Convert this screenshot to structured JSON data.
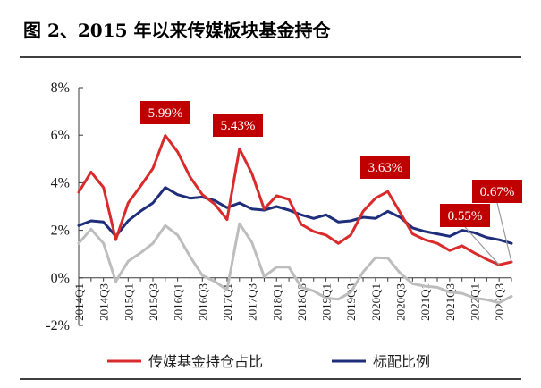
{
  "figure_title": "图 2、2015 年以来传媒板块基金持仓",
  "chart_data": {
    "type": "line",
    "title": "",
    "xlabel": "",
    "ylabel": "",
    "ylim": [
      -2,
      8
    ],
    "yticks": [
      -2,
      0,
      2,
      4,
      6,
      8
    ],
    "ytick_labels": [
      "-2%",
      "0%",
      "2%",
      "4%",
      "6%",
      "8%"
    ],
    "ytick_suffix": "%",
    "grid": false,
    "legend_position": "bottom",
    "x": [
      "2014Q1",
      "2014Q2",
      "2014Q3",
      "2014Q4",
      "2015Q1",
      "2015Q2",
      "2015Q3",
      "2015Q4",
      "2016Q1",
      "2016Q2",
      "2016Q3",
      "2016Q4",
      "2017Q1",
      "2017Q2",
      "2017Q3",
      "2017Q4",
      "2018Q1",
      "2018Q2",
      "2018Q3",
      "2018Q4",
      "2019Q1",
      "2019Q2",
      "2019Q3",
      "2019Q4",
      "2020Q1",
      "2020Q2",
      "2020Q3",
      "2020Q4",
      "2021Q1",
      "2021Q2",
      "2021Q3",
      "2021Q4",
      "2022Q1",
      "2022Q2",
      "2022Q3",
      "2022Q4"
    ],
    "x_tick_labels": [
      "2014Q1",
      "2014Q3",
      "2015Q1",
      "2015Q3",
      "2016Q1",
      "2016Q3",
      "2017Q1",
      "2017Q3",
      "2018Q1",
      "2018Q3",
      "2019Q1",
      "2019Q3",
      "2020Q1",
      "2020Q3",
      "2021Q1",
      "2021Q3",
      "2022Q1",
      "2022Q3"
    ],
    "series": [
      {
        "name": "传媒基金持仓占比",
        "color": "#d92b2b",
        "values": [
          3.6,
          4.45,
          3.8,
          1.6,
          3.15,
          3.85,
          4.6,
          5.99,
          5.3,
          4.25,
          3.5,
          3.1,
          2.45,
          5.43,
          4.4,
          2.9,
          3.45,
          3.3,
          2.25,
          1.95,
          1.8,
          1.45,
          1.8,
          2.8,
          3.35,
          3.63,
          2.75,
          1.85,
          1.6,
          1.45,
          1.15,
          1.35,
          1.05,
          0.78,
          0.55,
          0.67
        ]
      },
      {
        "name": "标配比例",
        "color": "#1f2e7a",
        "values": [
          2.2,
          2.4,
          2.35,
          1.75,
          2.4,
          2.8,
          3.15,
          3.8,
          3.5,
          3.35,
          3.4,
          3.25,
          2.95,
          3.15,
          2.9,
          2.85,
          3.0,
          2.85,
          2.65,
          2.5,
          2.65,
          2.35,
          2.4,
          2.55,
          2.5,
          2.8,
          2.55,
          2.1,
          1.95,
          1.85,
          1.75,
          2.0,
          1.9,
          1.7,
          1.6,
          1.45
        ]
      },
      {
        "name": "",
        "color": "#bdbdbd",
        "values": [
          1.45,
          2.05,
          1.45,
          -0.15,
          0.7,
          1.05,
          1.45,
          2.2,
          1.8,
          0.9,
          0.1,
          -0.15,
          -0.5,
          2.28,
          1.5,
          0.05,
          0.45,
          0.45,
          -0.4,
          -0.55,
          -0.85,
          -0.9,
          -0.6,
          0.25,
          0.85,
          0.83,
          0.2,
          -0.25,
          -0.35,
          -0.4,
          -0.6,
          -0.65,
          -0.85,
          -0.92,
          -1.05,
          -0.78
        ]
      }
    ],
    "callouts": [
      {
        "label": "5.99%",
        "series": 0,
        "index": 7
      },
      {
        "label": "5.43%",
        "series": 0,
        "index": 13
      },
      {
        "label": "3.63%",
        "series": 0,
        "index": 25
      },
      {
        "label": "0.55%",
        "series": 0,
        "index": 34
      },
      {
        "label": "0.67%",
        "series": 0,
        "index": 35
      }
    ]
  }
}
